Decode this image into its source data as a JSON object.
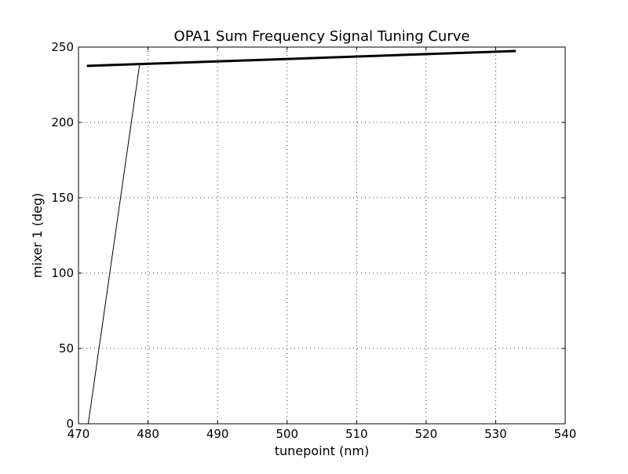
{
  "chart_data": {
    "type": "line",
    "title": "OPA1 Sum Frequency Signal Tuning Curve",
    "xlabel": "tunepoint (nm)",
    "ylabel": "mixer 1 (deg)",
    "xlim": [
      470,
      540
    ],
    "ylim": [
      0,
      250
    ],
    "xticks": [
      470,
      480,
      490,
      500,
      510,
      520,
      530,
      540
    ],
    "yticks": [
      0,
      50,
      100,
      150,
      200,
      250
    ],
    "grid": true,
    "series": [
      {
        "style": "thick",
        "color": "#000000",
        "x": [
          471.2,
          532.9
        ],
        "y": [
          237.5,
          247.4
        ]
      },
      {
        "style": "thin",
        "color": "#000000",
        "x": [
          471.4,
          478.8
        ],
        "y": [
          0.0,
          238.7
        ]
      }
    ]
  }
}
